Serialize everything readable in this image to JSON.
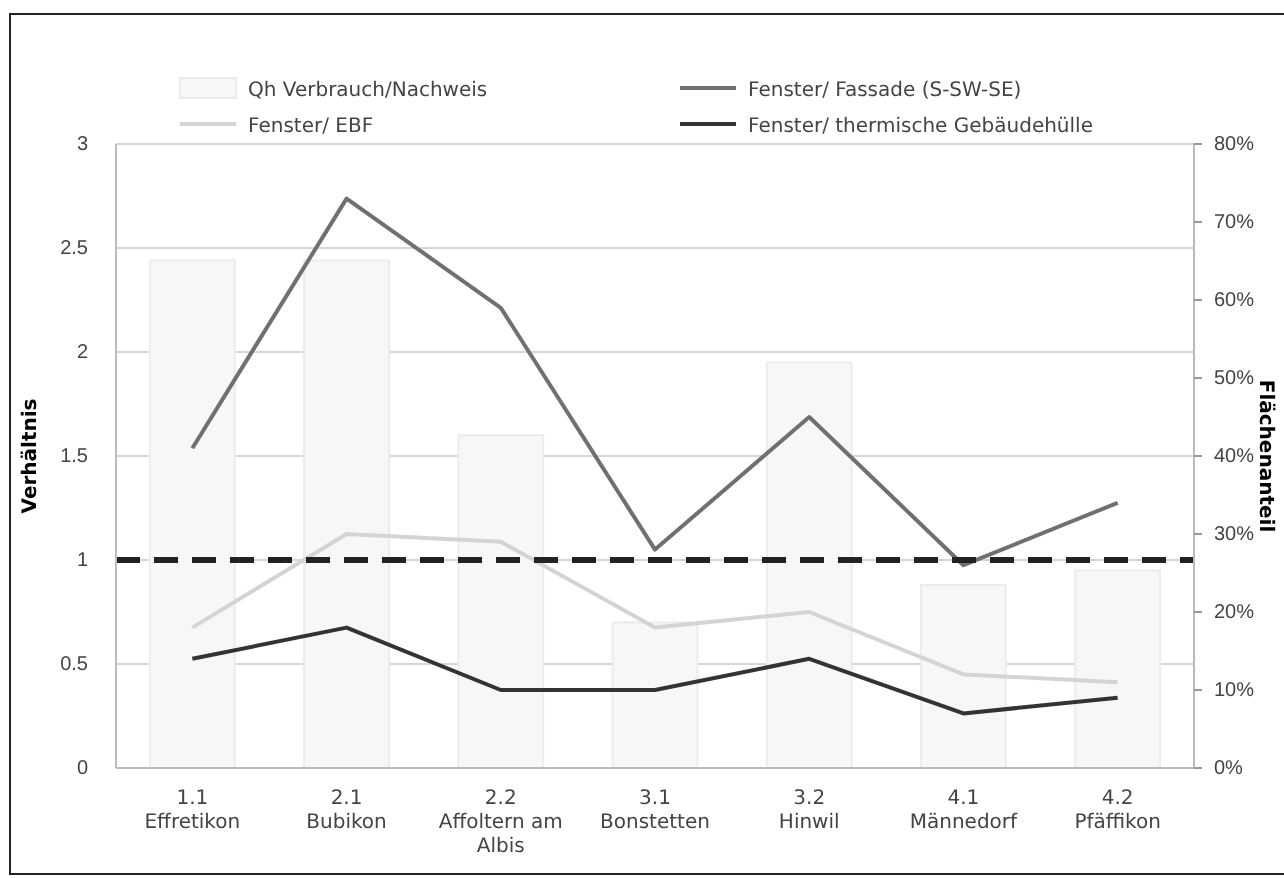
{
  "chart_data": {
    "type": "bar",
    "xlabel": null,
    "ylabel": "Verhältnis",
    "y2label": "Flächenanteil",
    "categories": [
      "1.1\nEffretikon",
      "2.1\nBubikon",
      "2.2\nAffoltern am\nAlbis",
      "3.1\nBonstetten",
      "3.2\nHinwil",
      "4.1\nMännedorf",
      "4.2\nPfäffikon"
    ],
    "series": [
      {
        "name": "Qh Verbrauch/Nachweis",
        "color": "#f7f7f7",
        "values": [
          2.44,
          2.44,
          1.6,
          0.7,
          1.95,
          0.88,
          0.95
        ]
      },
      {
        "name": "Fenster/ EBF",
        "type": "line",
        "axis": "y2",
        "color": "#d4d4d4",
        "values": [
          18,
          30,
          29,
          18,
          20,
          12,
          11
        ]
      },
      {
        "name": "Fenster/ Fassade (S-SW-SE)",
        "type": "line",
        "axis": "y2",
        "color": "#707070",
        "values": [
          41,
          73,
          59,
          28,
          45,
          26,
          34
        ]
      },
      {
        "name": "Fenster/ thermische Gebäudehülle",
        "type": "line",
        "axis": "y2",
        "color": "#333333",
        "values": [
          14,
          18,
          10,
          10,
          14,
          7,
          9
        ]
      }
    ],
    "ylim": [
      0,
      3
    ],
    "yticks": [
      0,
      0.5,
      1,
      1.5,
      2,
      2.5,
      3
    ],
    "y2lim": [
      0,
      80
    ],
    "y2ticks": [
      {
        "value": 0,
        "label": "0%"
      },
      {
        "value": 10,
        "label": "10%"
      },
      {
        "value": 20,
        "label": "20%"
      },
      {
        "value": 30,
        "label": "30%"
      },
      {
        "value": 40,
        "label": "40%"
      },
      {
        "value": 50,
        "label": "50%"
      },
      {
        "value": 60,
        "label": "60%"
      },
      {
        "value": 70,
        "label": "70%"
      },
      {
        "value": 80,
        "label": "80%"
      }
    ],
    "ref_lines": [
      {
        "axis": "y",
        "value": 1,
        "label": null,
        "color": "#222222",
        "line_style": "dashed"
      }
    ],
    "grid": "y",
    "legend": "top",
    "marker": "none"
  }
}
